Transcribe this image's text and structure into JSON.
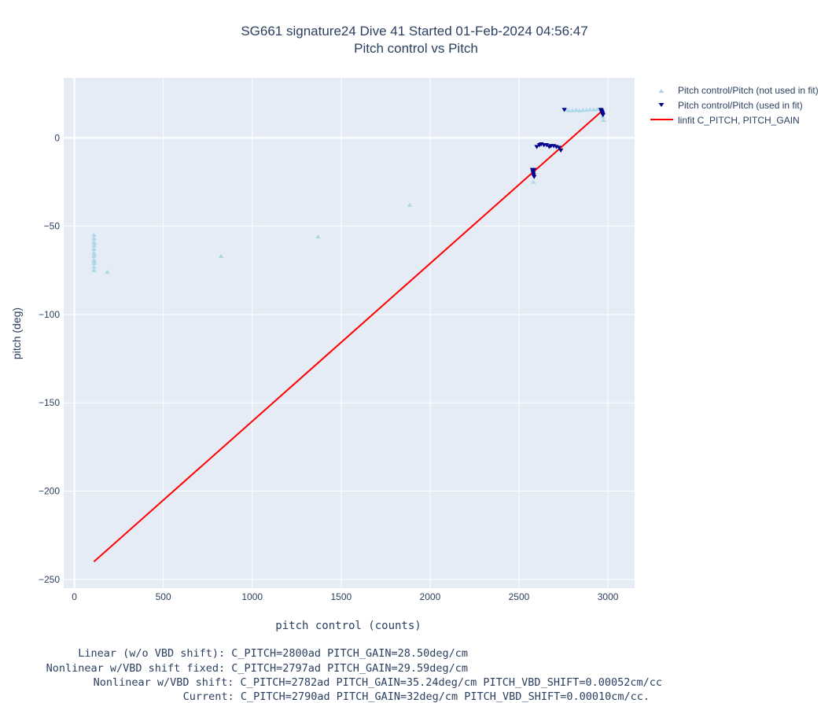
{
  "chart_data": {
    "type": "scatter",
    "title": "SG661 signature24 Dive 41 Started 01-Feb-2024 04:56:47",
    "subtitle": "Pitch control vs Pitch",
    "xlabel": "pitch control (counts)",
    "ylabel": "pitch (deg)",
    "xlim": [
      -60,
      3150
    ],
    "ylim": [
      -255,
      34
    ],
    "xticks": [
      0,
      500,
      1000,
      1500,
      2000,
      2500,
      3000
    ],
    "yticks": [
      0,
      -50,
      -100,
      -150,
      -200,
      -250
    ],
    "xtick_labels": [
      "0",
      "500",
      "1000",
      "1500",
      "2000",
      "2500",
      "3000"
    ],
    "ytick_labels": [
      "0",
      "−50",
      "−100",
      "−150",
      "−200",
      "−250"
    ],
    "grid": true,
    "legend_position": "top-right outside",
    "colors": {
      "plot_bg": "#e5ecf6",
      "grid": "#ffffff",
      "not_used": "#add8e6",
      "used": "#00008b",
      "fit": "#ff0000"
    },
    "series": [
      {
        "name": "Pitch control/Pitch (not used in fit)",
        "marker": "triangle-up",
        "color": "#add8e6",
        "points": [
          [
            110,
            -55
          ],
          [
            110,
            -57
          ],
          [
            110,
            -59
          ],
          [
            110,
            -61
          ],
          [
            110,
            -63
          ],
          [
            110,
            -65
          ],
          [
            110,
            -67
          ],
          [
            110,
            -69
          ],
          [
            110,
            -71
          ],
          [
            110,
            -73
          ],
          [
            110,
            -75
          ],
          [
            112,
            -60
          ],
          [
            112,
            -66
          ],
          [
            112,
            -70
          ],
          [
            185,
            -76
          ],
          [
            825,
            -67
          ],
          [
            1370,
            -56
          ],
          [
            1885,
            -38
          ],
          [
            2580,
            -25
          ],
          [
            2760,
            16
          ],
          [
            2780,
            15.5
          ],
          [
            2800,
            15.5
          ],
          [
            2820,
            15.8
          ],
          [
            2840,
            15.5
          ],
          [
            2860,
            15.7
          ],
          [
            2880,
            15.8
          ],
          [
            2900,
            16
          ],
          [
            2920,
            16
          ],
          [
            2940,
            16.2
          ],
          [
            2960,
            16
          ],
          [
            2970,
            12
          ],
          [
            2975,
            10
          ]
        ]
      },
      {
        "name": "Pitch control/Pitch (used in fit)",
        "marker": "triangle-down",
        "color": "#00008b",
        "points": [
          [
            2575,
            -18
          ],
          [
            2578,
            -19
          ],
          [
            2580,
            -20
          ],
          [
            2582,
            -21
          ],
          [
            2585,
            -22
          ],
          [
            2585,
            -18
          ],
          [
            2600,
            -5
          ],
          [
            2615,
            -4
          ],
          [
            2625,
            -3.5
          ],
          [
            2640,
            -4
          ],
          [
            2655,
            -4
          ],
          [
            2670,
            -5
          ],
          [
            2680,
            -4.5
          ],
          [
            2695,
            -4.5
          ],
          [
            2710,
            -5
          ],
          [
            2725,
            -5.5
          ],
          [
            2735,
            -7
          ],
          [
            2755,
            16
          ],
          [
            2960,
            16
          ],
          [
            2963,
            15.5
          ],
          [
            2965,
            15
          ],
          [
            2967,
            14.5
          ],
          [
            2968,
            14
          ],
          [
            2970,
            13.5
          ],
          [
            2972,
            13
          ]
        ]
      },
      {
        "name": "linfit C_PITCH, PITCH_GAIN",
        "mode": "line",
        "color": "#ff0000",
        "points": [
          [
            110,
            -240
          ],
          [
            2970,
            15.5
          ]
        ]
      }
    ]
  },
  "footer": {
    "line1": "Linear (w/o VBD shift): C_PITCH=2800ad PITCH_GAIN=28.50deg/cm",
    "line2": "Nonlinear w/VBD shift fixed: C_PITCH=2797ad PITCH_GAIN=29.59deg/cm",
    "line3": "Nonlinear w/VBD shift: C_PITCH=2782ad PITCH_GAIN=35.24deg/cm PITCH_VBD_SHIFT=0.00052cm/cc",
    "line4": "Current: C_PITCH=2790ad PITCH_GAIN=32deg/cm PITCH_VBD_SHIFT=0.00010cm/cc."
  }
}
